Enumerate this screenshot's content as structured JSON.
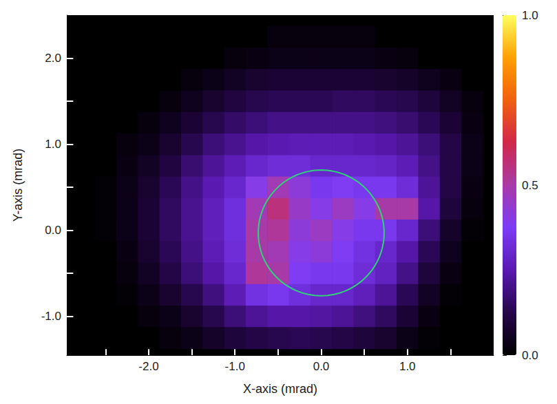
{
  "chart_data": {
    "type": "heatmap",
    "xlabel": "X-axis (mrad)",
    "ylabel": "Y-axis (mrad)",
    "xlim": [
      -2.95,
      2.0
    ],
    "ylim": [
      -1.45,
      2.5
    ],
    "xticks": [
      {
        "value": -2,
        "label": "-2.0"
      },
      {
        "value": -1,
        "label": "-1.0"
      },
      {
        "value": 0,
        "label": "0.0"
      },
      {
        "value": 1,
        "label": "1.0"
      }
    ],
    "xminorticks": [
      -2.5,
      -1.5,
      -0.5,
      0.5,
      1.5
    ],
    "yticks": [
      {
        "value": -1,
        "label": "-1.0"
      },
      {
        "value": 0,
        "label": "0.0"
      },
      {
        "value": 1,
        "label": "1.0"
      },
      {
        "value": 2,
        "label": "2.0"
      }
    ],
    "yminorticks": [
      -0.5,
      0.5,
      1.5
    ],
    "heatmap": {
      "x": [
        -2.75,
        -2.5,
        -2.25,
        -2.0,
        -1.75,
        -1.5,
        -1.25,
        -1.0,
        -0.75,
        -0.5,
        -0.25,
        0,
        0.25,
        0.5,
        0.75,
        1.0,
        1.25,
        1.5,
        1.75
      ],
      "y": [
        2.25,
        2.0,
        1.75,
        1.5,
        1.25,
        1.0,
        0.75,
        0.5,
        0.25,
        0,
        -0.25,
        -0.5,
        -0.75,
        -1.0,
        -1.25
      ],
      "values": [
        [
          0,
          0,
          0,
          0,
          0,
          0,
          0,
          0,
          0,
          0.02,
          0.02,
          0.02,
          0.02,
          0.02,
          0,
          0,
          0,
          0,
          0
        ],
        [
          0,
          0,
          0,
          0,
          0,
          0,
          0,
          0.02,
          0.03,
          0.04,
          0.04,
          0.04,
          0.04,
          0.04,
          0.03,
          0.02,
          0,
          0,
          0
        ],
        [
          0,
          0,
          0,
          0,
          0,
          0.02,
          0.04,
          0.06,
          0.08,
          0.09,
          0.09,
          0.09,
          0.09,
          0.09,
          0.08,
          0.07,
          0.05,
          0.03,
          0
        ],
        [
          0,
          0,
          0,
          0,
          0.02,
          0.05,
          0.08,
          0.11,
          0.13,
          0.14,
          0.14,
          0.14,
          0.15,
          0.15,
          0.14,
          0.13,
          0.1,
          0.06,
          0.02
        ],
        [
          0,
          0,
          0,
          0.02,
          0.05,
          0.09,
          0.13,
          0.16,
          0.18,
          0.2,
          0.2,
          0.2,
          0.2,
          0.2,
          0.19,
          0.17,
          0.14,
          0.09,
          0.03
        ],
        [
          0,
          0,
          0.02,
          0.04,
          0.08,
          0.13,
          0.18,
          0.21,
          0.24,
          0.25,
          0.26,
          0.26,
          0.26,
          0.25,
          0.24,
          0.22,
          0.18,
          0.12,
          0.04
        ],
        [
          0,
          0,
          0.03,
          0.06,
          0.11,
          0.17,
          0.22,
          0.26,
          0.3,
          0.32,
          0.32,
          0.3,
          0.3,
          0.3,
          0.29,
          0.26,
          0.2,
          0.12,
          0.04
        ],
        [
          0,
          0.01,
          0.04,
          0.08,
          0.14,
          0.2,
          0.25,
          0.3,
          0.4,
          0.48,
          0.42,
          0.36,
          0.38,
          0.36,
          0.36,
          0.32,
          0.22,
          0.12,
          0.03
        ],
        [
          0,
          0.01,
          0.04,
          0.09,
          0.15,
          0.21,
          0.27,
          0.33,
          0.48,
          0.56,
          0.45,
          0.4,
          0.46,
          0.4,
          0.5,
          0.5,
          0.24,
          0.1,
          0.02
        ],
        [
          0,
          0.01,
          0.04,
          0.09,
          0.15,
          0.21,
          0.27,
          0.33,
          0.5,
          0.52,
          0.42,
          0.46,
          0.4,
          0.36,
          0.36,
          0.3,
          0.18,
          0.07,
          0.01
        ],
        [
          0,
          0,
          0.03,
          0.08,
          0.14,
          0.2,
          0.26,
          0.32,
          0.5,
          0.48,
          0.4,
          0.42,
          0.38,
          0.34,
          0.3,
          0.24,
          0.14,
          0.05,
          0
        ],
        [
          0,
          0,
          0.02,
          0.06,
          0.12,
          0.18,
          0.24,
          0.3,
          0.52,
          0.5,
          0.38,
          0.36,
          0.36,
          0.32,
          0.28,
          0.2,
          0.1,
          0.03,
          0
        ],
        [
          0,
          0,
          0.01,
          0.04,
          0.08,
          0.13,
          0.19,
          0.26,
          0.34,
          0.36,
          0.33,
          0.3,
          0.3,
          0.27,
          0.22,
          0.14,
          0.06,
          0.01,
          0
        ],
        [
          0,
          0,
          0,
          0.02,
          0.04,
          0.08,
          0.13,
          0.18,
          0.22,
          0.24,
          0.24,
          0.23,
          0.22,
          0.19,
          0.15,
          0.09,
          0.03,
          0,
          0
        ],
        [
          0,
          0,
          0,
          0,
          0.02,
          0.04,
          0.07,
          0.1,
          0.12,
          0.13,
          0.14,
          0.13,
          0.12,
          0.1,
          0.08,
          0.04,
          0.01,
          0,
          0
        ]
      ],
      "colors": [
        "#000000",
        "#25064a",
        "#5a19b0",
        "#7d3cf5",
        "#a83aa8",
        "#d0284a",
        "#f06010",
        "#ffa000",
        "#ffff60"
      ]
    },
    "colorbar": {
      "lim": [
        0,
        1
      ],
      "ticks": [
        {
          "value": 0,
          "label": "0.0"
        },
        {
          "value": 0.5,
          "label": "0.5"
        },
        {
          "value": 1,
          "label": "1.0"
        }
      ],
      "minorticks": [
        0.25,
        0.75
      ]
    },
    "circle": {
      "center": [
        0.0,
        -0.03
      ],
      "radius": 0.73,
      "color": "#2fd37a"
    }
  }
}
